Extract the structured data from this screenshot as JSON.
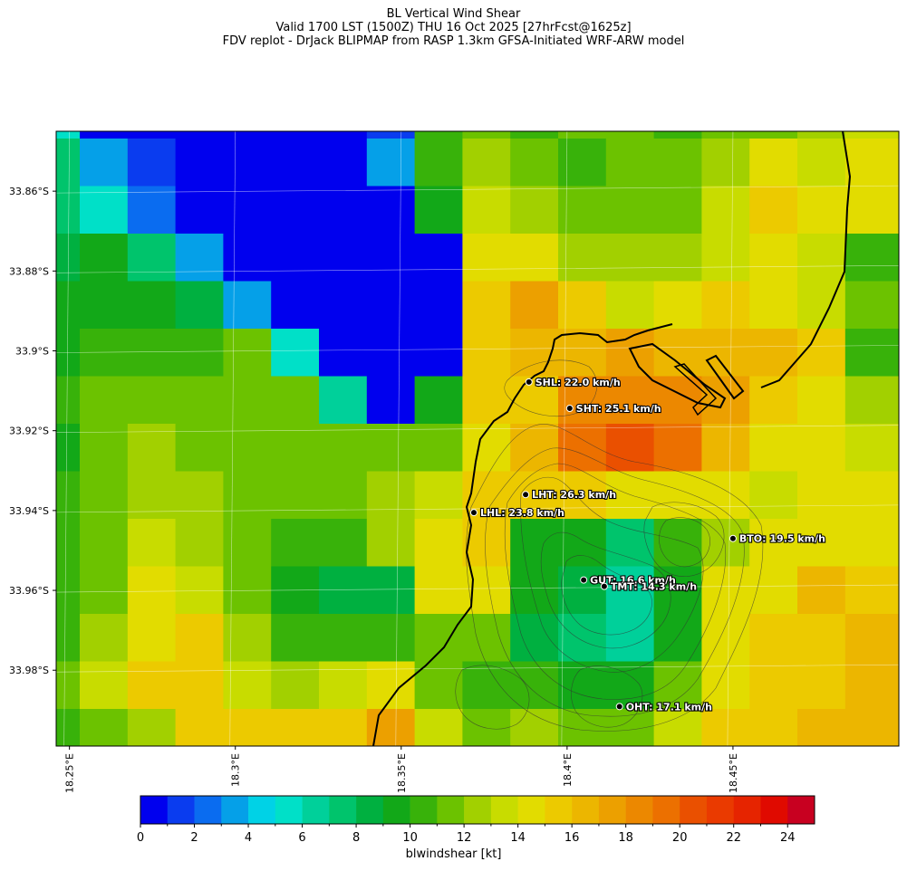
{
  "title": {
    "line1": "BL Vertical Wind Shear",
    "line2": "Valid 1700 LST (1500Z) THU 16 Oct 2025 [27hrFcst@1625z]",
    "line3": "FDV replot - DrJack BLIPMAP from RASP 1.3km GFSA-Initiated WRF-ARW model"
  },
  "map": {
    "lon_range": [
      18.246,
      18.5
    ],
    "lat_range": [
      33.999,
      33.845
    ],
    "lat_ticks": [
      "33.86°S",
      "33.88°S",
      "33.9°S",
      "33.92°S",
      "33.94°S",
      "33.96°S",
      "33.98°S"
    ],
    "lat_tick_values": [
      33.86,
      33.88,
      33.9,
      33.92,
      33.94,
      33.96,
      33.98
    ],
    "lon_ticks": [
      "18.25°E",
      "18.3°E",
      "18.35°E",
      "18.4°E",
      "18.45°E"
    ],
    "lon_tick_values": [
      18.25,
      18.3,
      18.35,
      18.4,
      18.45
    ],
    "grid_values": [
      [
        5,
        0,
        0,
        0,
        0,
        0,
        0,
        1,
        10,
        11,
        10,
        11,
        11,
        10,
        11,
        11,
        12,
        13
      ],
      [
        7,
        3,
        1,
        0,
        0,
        0,
        0,
        3,
        10,
        12,
        11,
        10,
        11,
        11,
        12,
        14,
        13,
        14
      ],
      [
        7,
        5,
        2,
        0,
        0,
        0,
        0,
        0,
        9,
        13,
        12,
        11,
        11,
        11,
        13,
        15,
        14,
        14
      ],
      [
        8,
        9,
        7,
        3,
        0,
        0,
        0,
        0,
        0,
        14,
        14,
        12,
        12,
        12,
        13,
        14,
        13,
        10
      ],
      [
        9,
        9,
        9,
        8,
        3,
        0,
        0,
        0,
        0,
        15,
        17,
        15,
        13,
        14,
        15,
        14,
        13,
        11
      ],
      [
        9,
        10,
        10,
        10,
        11,
        5,
        0,
        0,
        0,
        15,
        16,
        16,
        17,
        16,
        16,
        16,
        15,
        10
      ],
      [
        10,
        11,
        11,
        11,
        11,
        11,
        6,
        0,
        9,
        15,
        15,
        18,
        18,
        18,
        17,
        15,
        14,
        12
      ],
      [
        9,
        11,
        12,
        11,
        11,
        11,
        11,
        11,
        11,
        14,
        16,
        19,
        20,
        19,
        16,
        14,
        14,
        13
      ],
      [
        10,
        11,
        12,
        12,
        11,
        11,
        11,
        12,
        13,
        15,
        15,
        15,
        14,
        14,
        14,
        13,
        14,
        14
      ],
      [
        10,
        11,
        13,
        12,
        11,
        10,
        10,
        12,
        14,
        15,
        9,
        9,
        7,
        10,
        12,
        14,
        14,
        14
      ],
      [
        10,
        11,
        14,
        13,
        11,
        9,
        8,
        8,
        14,
        14,
        9,
        8,
        6,
        9,
        14,
        14,
        16,
        15
      ],
      [
        10,
        12,
        14,
        15,
        12,
        10,
        10,
        10,
        11,
        11,
        8,
        7,
        6,
        9,
        14,
        15,
        15,
        16
      ],
      [
        11,
        13,
        15,
        15,
        13,
        12,
        13,
        14,
        11,
        10,
        10,
        9,
        9,
        11,
        14,
        15,
        15,
        16
      ],
      [
        10,
        11,
        12,
        15,
        15,
        15,
        15,
        17,
        13,
        11,
        12,
        11,
        11,
        13,
        15,
        15,
        16,
        16
      ]
    ],
    "stations": [
      {
        "code": "SHL",
        "label": "SHL: 22.0 km/h",
        "lon": 18.3885,
        "lat": 33.9078
      },
      {
        "code": "SHT",
        "label": "SHT: 25.1 km/h",
        "lon": 18.4008,
        "lat": 33.9144
      },
      {
        "code": "LHT",
        "label": "LHT: 26.3 km/h",
        "lon": 18.3875,
        "lat": 33.936
      },
      {
        "code": "LHL",
        "label": "LHL: 23.8 km/h",
        "lon": 18.3719,
        "lat": 33.9405
      },
      {
        "code": "BTO",
        "label": "BTO: 19.5 km/h",
        "lon": 18.45,
        "lat": 33.947
      },
      {
        "code": "GUT",
        "label": "GUT: 16.6 km/h",
        "lon": 18.405,
        "lat": 33.9574
      },
      {
        "code": "TMT",
        "label": "TMT: 14.3 km/h",
        "lon": 18.4112,
        "lat": 33.959
      },
      {
        "code": "OHT",
        "label": "OHT: 17.1 km/h",
        "lon": 18.4158,
        "lat": 33.9891
      }
    ]
  },
  "colorbar": {
    "min": 0,
    "max": 25,
    "tick_values": [
      0,
      2,
      4,
      6,
      8,
      10,
      12,
      14,
      16,
      18,
      20,
      22,
      24
    ],
    "tick_labels": [
      "0",
      "2",
      "4",
      "6",
      "8",
      "10",
      "12",
      "14",
      "16",
      "18",
      "20",
      "22",
      "24"
    ],
    "label": "blwindshear [kt]",
    "colors": [
      "#0000ee",
      "#0a3cef",
      "#0a6cf0",
      "#05a0e8",
      "#00d2e6",
      "#00e0c8",
      "#00d09a",
      "#00c46c",
      "#00b040",
      "#12a818",
      "#38b20a",
      "#6cc200",
      "#a2d000",
      "#c8dc00",
      "#e2dc00",
      "#ecca00",
      "#ecb600",
      "#eca000",
      "#ec8800",
      "#ec7000",
      "#ea5000",
      "#ea3a00",
      "#e62400",
      "#e00a00",
      "#c80020"
    ]
  }
}
